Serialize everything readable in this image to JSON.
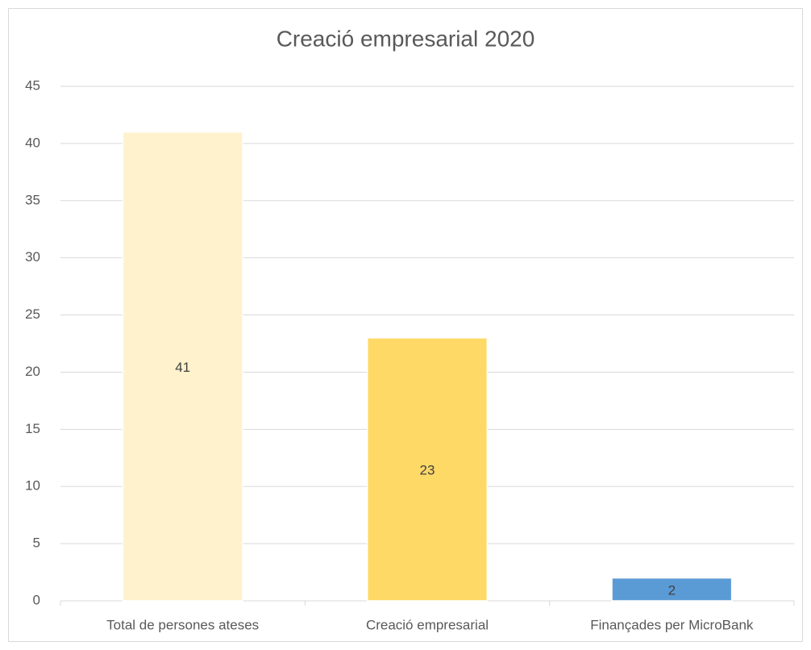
{
  "chart_data": {
    "type": "bar",
    "title": "Creació empresarial 2020",
    "categories": [
      "Total de persones ateses",
      "Creació empresarial",
      "Finançades per MicroBank"
    ],
    "values": [
      41,
      23,
      2
    ],
    "colors": [
      "#fff2cc",
      "#ffd966",
      "#5b9bd5"
    ],
    "ylim": [
      0,
      45
    ],
    "yticks": [
      0,
      5,
      10,
      15,
      20,
      25,
      30,
      35,
      40,
      45
    ],
    "grid": true,
    "data_labels": true
  }
}
